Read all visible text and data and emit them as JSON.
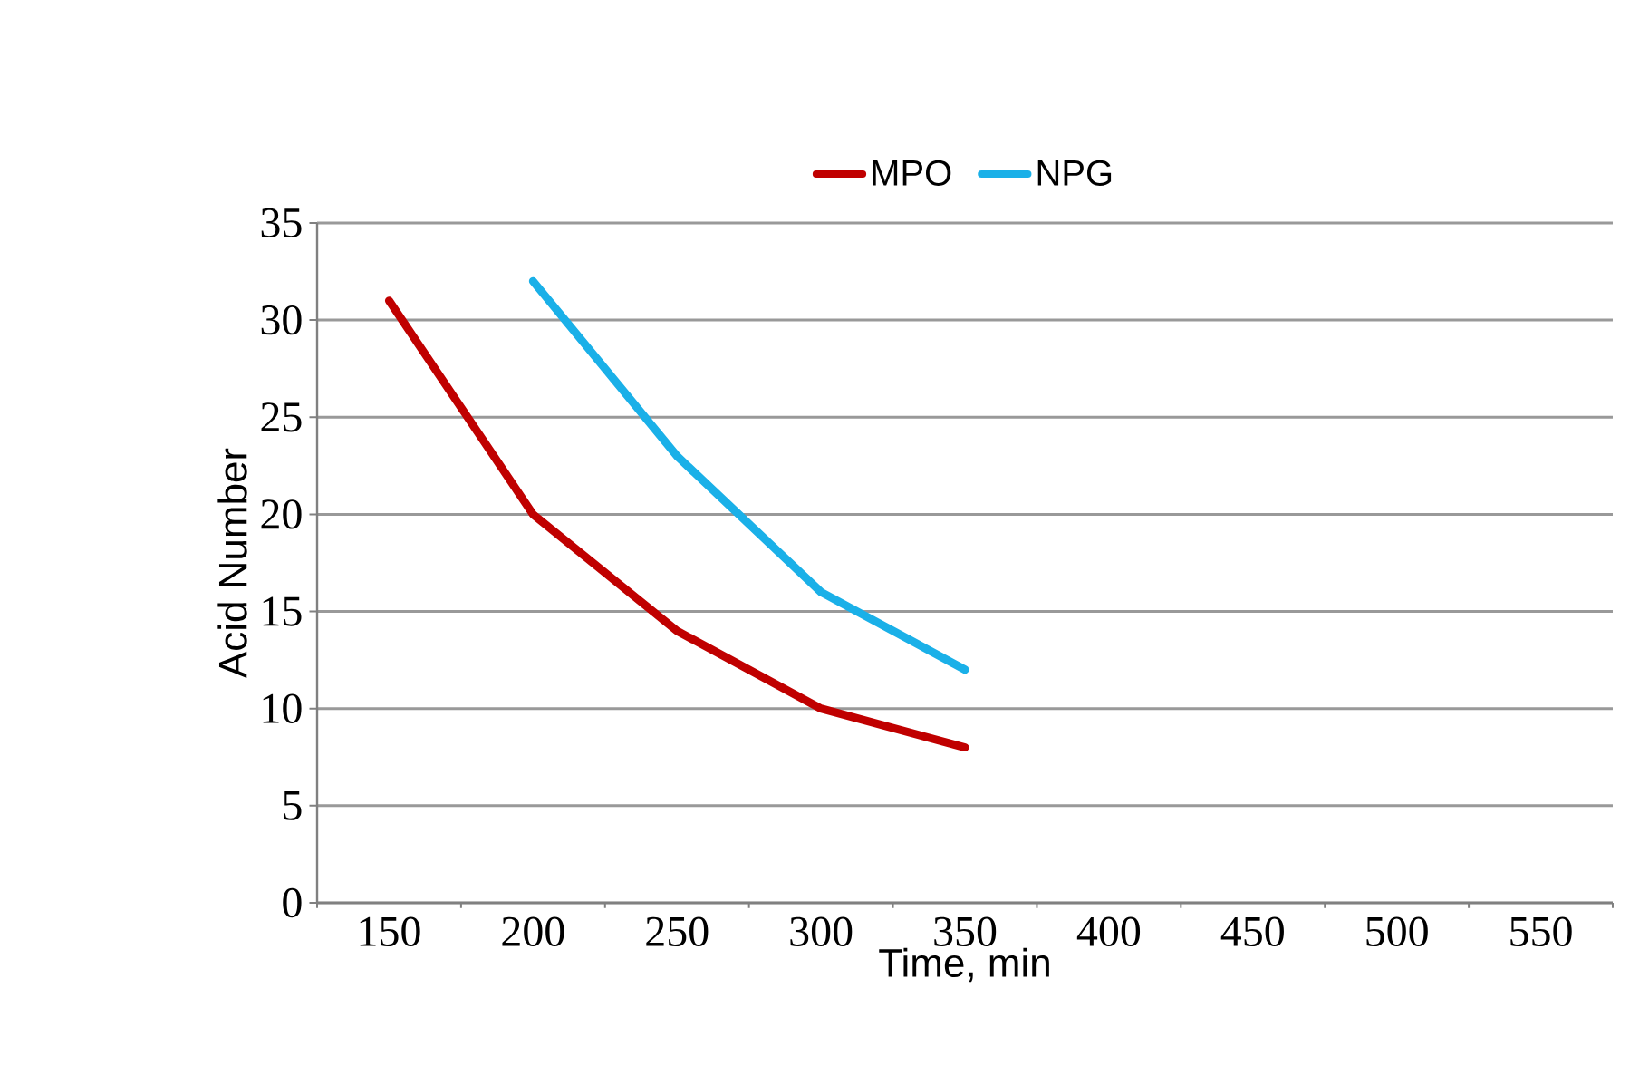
{
  "chart_data": {
    "type": "line",
    "xlabel": "Time, min",
    "ylabel": "Acid Number",
    "categories": [
      "150",
      "200",
      "250",
      "300",
      "350",
      "400",
      "450",
      "500",
      "550"
    ],
    "series": [
      {
        "name": "MPO",
        "color": "#c00000",
        "values": [
          31,
          20,
          14,
          10,
          8,
          null,
          null,
          null,
          null
        ]
      },
      {
        "name": "NPG",
        "color": "#1ab0e8",
        "values": [
          null,
          32,
          23,
          16,
          12,
          null,
          null,
          null,
          null
        ]
      }
    ],
    "ylim": [
      0,
      35
    ],
    "yticks": [
      0,
      5,
      10,
      15,
      20,
      25,
      30,
      35
    ],
    "grid": "y",
    "legend": "top",
    "marker": "none",
    "line_style": "solid"
  }
}
